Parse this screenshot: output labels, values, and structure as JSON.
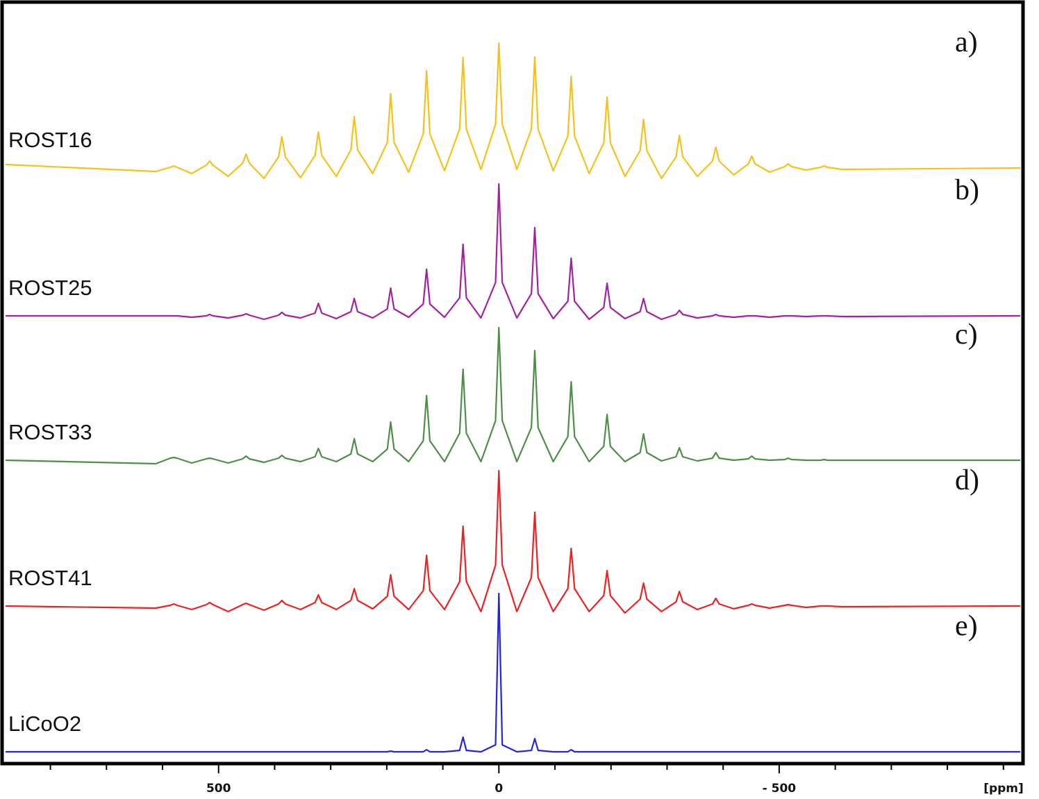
{
  "chart_data": {
    "type": "line",
    "xlabel": "[ppm]",
    "xlim": [
      880,
      -930
    ],
    "xticks": [
      500,
      0,
      {
        "value": -500,
        "label": "- 500"
      }
    ],
    "xminor_ticks": [
      800,
      700,
      600,
      400,
      300,
      200,
      100,
      -100,
      -200,
      -300,
      -400,
      -600,
      -700,
      -800,
      -900
    ],
    "x": [
      880,
      612,
      586,
      580,
      574,
      548,
      522,
      516,
      510,
      483,
      457,
      451,
      445,
      419,
      393,
      387,
      381,
      354,
      328,
      322,
      316,
      290,
      264,
      258,
      252,
      225,
      199,
      193,
      187,
      161,
      135,
      129,
      123,
      97,
      70,
      64,
      58,
      32,
      6,
      0,
      -6,
      -32,
      -58,
      -64,
      -70,
      -97,
      -123,
      -129,
      -135,
      -161,
      -187,
      -193,
      -199,
      -225,
      -252,
      -258,
      -264,
      -290,
      -316,
      -322,
      -328,
      -354,
      -381,
      -387,
      -393,
      -419,
      -445,
      -451,
      -457,
      -483,
      -510,
      -516,
      -522,
      -548,
      -574,
      -580,
      -586,
      -612,
      -930
    ],
    "series": [
      {
        "name": "ROST16",
        "label": "a)",
        "color": "#f5c21b",
        "values": [
          5,
          -5,
          1,
          3,
          1,
          -8,
          4,
          10,
          4,
          -12,
          7,
          20,
          7,
          -15,
          16,
          45,
          16,
          -14,
          18,
          52,
          18,
          -12,
          26,
          74,
          26,
          -8,
          37,
          107,
          37,
          -6,
          49,
          140,
          49,
          -4,
          56,
          159,
          56,
          -2,
          63,
          180,
          63,
          -2,
          56,
          160,
          56,
          -4,
          46,
          132,
          46,
          -8,
          36,
          102,
          36,
          -12,
          25,
          70,
          25,
          -15,
          16,
          47,
          16,
          -12,
          10,
          30,
          10,
          -10,
          6,
          17,
          6,
          -6,
          2,
          6,
          2,
          -3,
          1,
          3,
          1,
          -2,
          0
        ]
      },
      {
        "name": "ROST25",
        "label": "b)",
        "color": "#a3219f",
        "values": [
          0,
          0,
          0,
          0,
          0,
          -2,
          0,
          2,
          0,
          -3,
          1,
          3,
          1,
          -5,
          1,
          5,
          1,
          -3,
          4,
          18,
          4,
          -4,
          6,
          25,
          6,
          -3,
          10,
          40,
          10,
          -2,
          17,
          67,
          17,
          -2,
          26,
          103,
          26,
          -3,
          48,
          190,
          48,
          -3,
          32,
          127,
          32,
          -4,
          21,
          83,
          21,
          -5,
          12,
          47,
          12,
          -4,
          6,
          25,
          6,
          -5,
          2,
          8,
          2,
          -3,
          0,
          2,
          0,
          -2,
          0,
          0,
          0,
          -2,
          0,
          0,
          0,
          -1,
          0,
          0,
          0,
          -1,
          0
        ]
      },
      {
        "name": "ROST33",
        "label": "c)",
        "color": "#4e8e48",
        "values": [
          0,
          -5,
          3,
          4,
          3,
          -4,
          2,
          3,
          2,
          -4,
          2,
          6,
          2,
          -3,
          3,
          7,
          3,
          -2,
          5,
          17,
          5,
          -2,
          9,
          31,
          9,
          -2,
          16,
          55,
          16,
          -2,
          28,
          93,
          28,
          -2,
          39,
          131,
          39,
          -2,
          57,
          191,
          57,
          -2,
          47,
          158,
          47,
          -2,
          34,
          113,
          34,
          -2,
          20,
          66,
          20,
          -2,
          11,
          38,
          11,
          -1,
          5,
          18,
          5,
          -1,
          3,
          11,
          3,
          0,
          2,
          6,
          2,
          0,
          1,
          3,
          1,
          0,
          0,
          1,
          0,
          0,
          0
        ]
      },
      {
        "name": "ROST41",
        "label": "d)",
        "color": "#ec2222",
        "values": [
          0,
          -3,
          1,
          3,
          1,
          -5,
          2,
          5,
          2,
          -8,
          2,
          4,
          2,
          -6,
          3,
          8,
          3,
          -5,
          5,
          16,
          5,
          -5,
          8,
          25,
          8,
          -4,
          14,
          45,
          14,
          -5,
          22,
          73,
          22,
          -5,
          35,
          115,
          35,
          -8,
          59,
          195,
          59,
          -8,
          41,
          135,
          41,
          -8,
          25,
          83,
          25,
          -8,
          15,
          51,
          15,
          -10,
          10,
          33,
          10,
          -8,
          6,
          21,
          6,
          -5,
          3,
          11,
          3,
          -4,
          1,
          3,
          1,
          -3,
          1,
          2,
          1,
          -2,
          0,
          0,
          0,
          -1,
          0
        ]
      },
      {
        "name": "LiCoO2",
        "label": "e)",
        "color": "#2323e0",
        "values": [
          0,
          0,
          0,
          0,
          0,
          0,
          0,
          0,
          0,
          0,
          0,
          0,
          0,
          0,
          0,
          0,
          0,
          0,
          0,
          0,
          0,
          0,
          0,
          0,
          0,
          0,
          0,
          1,
          0,
          0,
          0,
          3,
          0,
          0,
          2,
          21,
          2,
          0,
          10,
          228,
          10,
          0,
          2,
          19,
          2,
          0,
          0,
          3,
          0,
          0,
          0,
          0,
          0,
          0,
          0,
          0,
          0,
          0,
          0,
          0,
          0,
          0,
          0,
          0,
          0,
          0,
          0,
          0,
          0,
          0,
          0,
          0,
          0,
          0,
          0,
          0,
          0,
          0,
          0
        ]
      }
    ]
  }
}
